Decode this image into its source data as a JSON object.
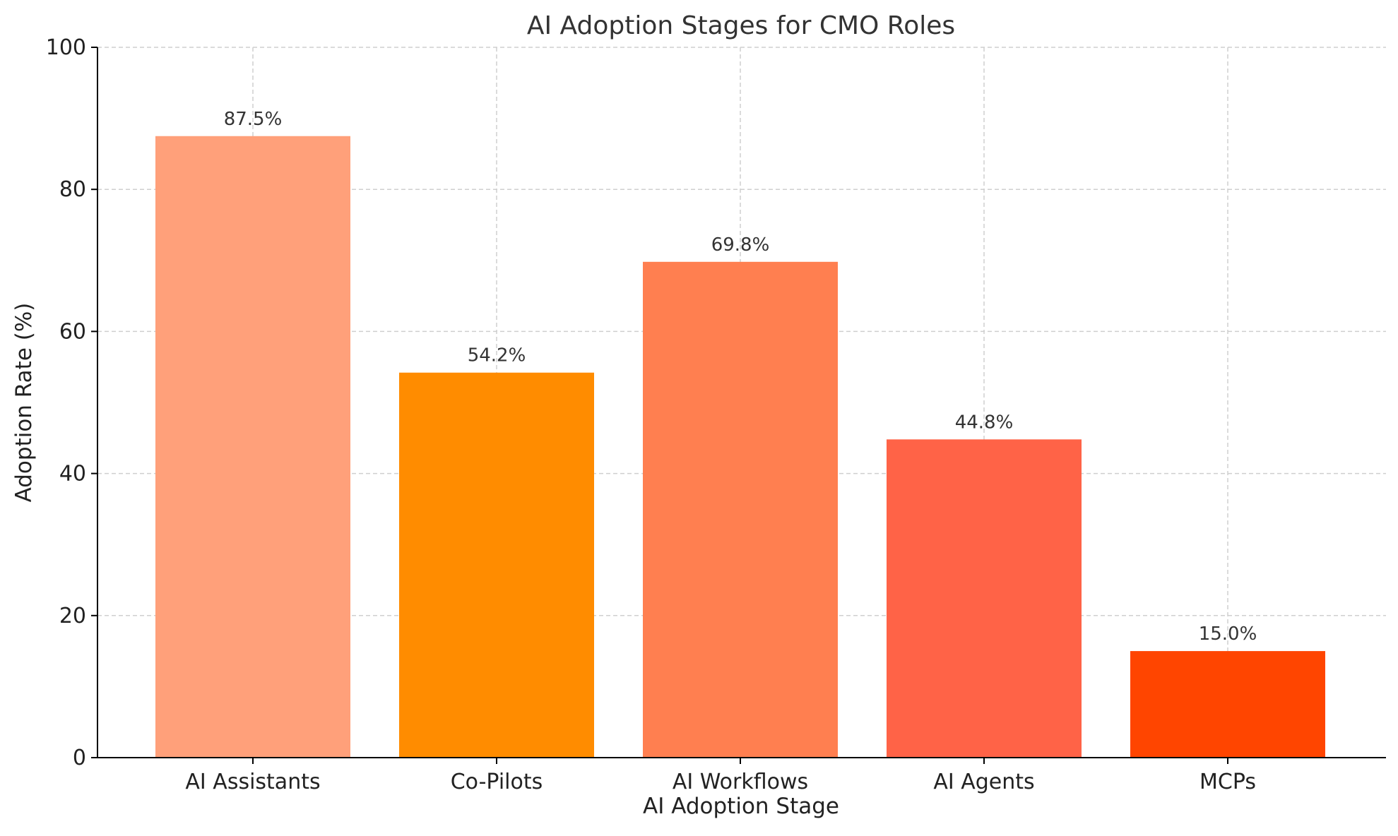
{
  "chart_data": {
    "type": "bar",
    "title": "AI Adoption Stages for CMO Roles",
    "xlabel": "AI Adoption Stage",
    "ylabel": "Adoption Rate (%)",
    "categories": [
      "AI Assistants",
      "Co-Pilots",
      "AI Workflows",
      "AI Agents",
      "MCPs"
    ],
    "values": [
      87.5,
      54.2,
      69.8,
      44.8,
      15.0
    ],
    "value_labels": [
      "87.5%",
      "54.2%",
      "69.8%",
      "44.8%",
      "15.0%"
    ],
    "colors": [
      "#FFA07A",
      "#FF8C00",
      "#FF7F50",
      "#FF6347",
      "#FF4500"
    ],
    "ylim": [
      0,
      100
    ],
    "yticks": [
      0,
      20,
      40,
      60,
      80,
      100
    ],
    "grid": true,
    "legend": "none"
  }
}
